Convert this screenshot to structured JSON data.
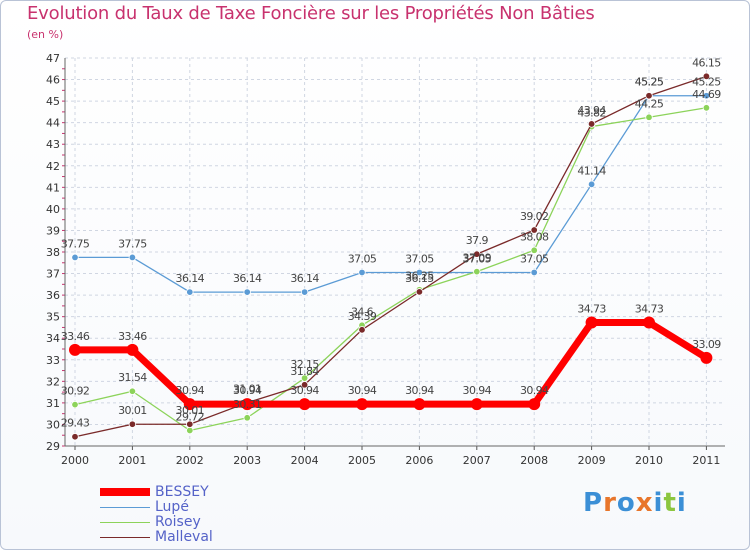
{
  "title": "Evolution du Taux de Taxe Foncière sur les Propriétés Non Bâties",
  "subtitle": "(en %)",
  "logo": {
    "text": "Proxiti",
    "letters": [
      "P",
      "r",
      "o",
      "x",
      "i",
      "t",
      "i"
    ],
    "colors": [
      "#3b8fd6",
      "#e8762b",
      "#3b8fd6",
      "#e8762b",
      "#3b8fd6",
      "#8cc63f",
      "#3b8fd6"
    ]
  },
  "chart_data": {
    "type": "line",
    "title": "Evolution du Taux de Taxe Foncière sur les Propriétés Non Bâties",
    "ylabel": "(en %)",
    "xlabel": "",
    "x": [
      "2000",
      "2001",
      "2002",
      "2003",
      "2004",
      "2005",
      "2006",
      "2007",
      "2008",
      "2009",
      "2010",
      "2011"
    ],
    "ylim": [
      29,
      47
    ],
    "yticks": [
      29,
      30,
      31,
      32,
      33,
      34,
      35,
      36,
      37,
      38,
      39,
      40,
      41,
      42,
      43,
      44,
      45,
      46,
      47
    ],
    "grid": true,
    "legend_position": "bottom-left",
    "series": [
      {
        "name": "BESSEY",
        "color": "#ff0000",
        "values": [
          33.46,
          33.46,
          30.94,
          30.94,
          30.94,
          30.94,
          30.94,
          30.94,
          30.94,
          34.73,
          34.73,
          33.09
        ],
        "labels": [
          "33.46",
          "33.46",
          "30.94",
          "30.94",
          "30.94",
          "30.94",
          "30.94",
          "30.94",
          "30.94",
          "34.73",
          "34.73",
          "33.09"
        ]
      },
      {
        "name": "Lupé",
        "color": "#5b9bd5",
        "values": [
          37.75,
          37.75,
          36.14,
          36.14,
          36.14,
          37.05,
          37.05,
          37.05,
          37.05,
          41.14,
          45.25,
          45.25
        ],
        "labels": [
          "37.75",
          "37.75",
          "36.14",
          "36.14",
          "36.14",
          "37.05",
          "37.05",
          "37.05",
          "37.05",
          "41.14",
          "45.25",
          "45.25"
        ]
      },
      {
        "name": "Roisey",
        "color": "#8cd35a",
        "values": [
          30.92,
          31.54,
          29.72,
          30.31,
          32.15,
          34.6,
          36.25,
          37.09,
          38.08,
          43.82,
          44.25,
          44.69
        ],
        "labels": [
          "30.92",
          "31.54",
          "29.72",
          "30.31",
          "32.15",
          "34.6",
          "36.25",
          "37.09",
          "38.08",
          "43.82",
          "44.25",
          "44.69"
        ]
      },
      {
        "name": "Malleval",
        "color": "#7a2a2a",
        "values": [
          29.43,
          30.01,
          30.01,
          31.01,
          31.84,
          34.39,
          36.15,
          37.9,
          39.02,
          43.94,
          45.25,
          46.15
        ],
        "labels": [
          "29.43",
          "30.01",
          "30.01",
          "31.01",
          "31.84",
          "34.39",
          "36.15",
          "37.9",
          "39.02",
          "43.94",
          "45.25",
          "46.15"
        ]
      }
    ]
  }
}
